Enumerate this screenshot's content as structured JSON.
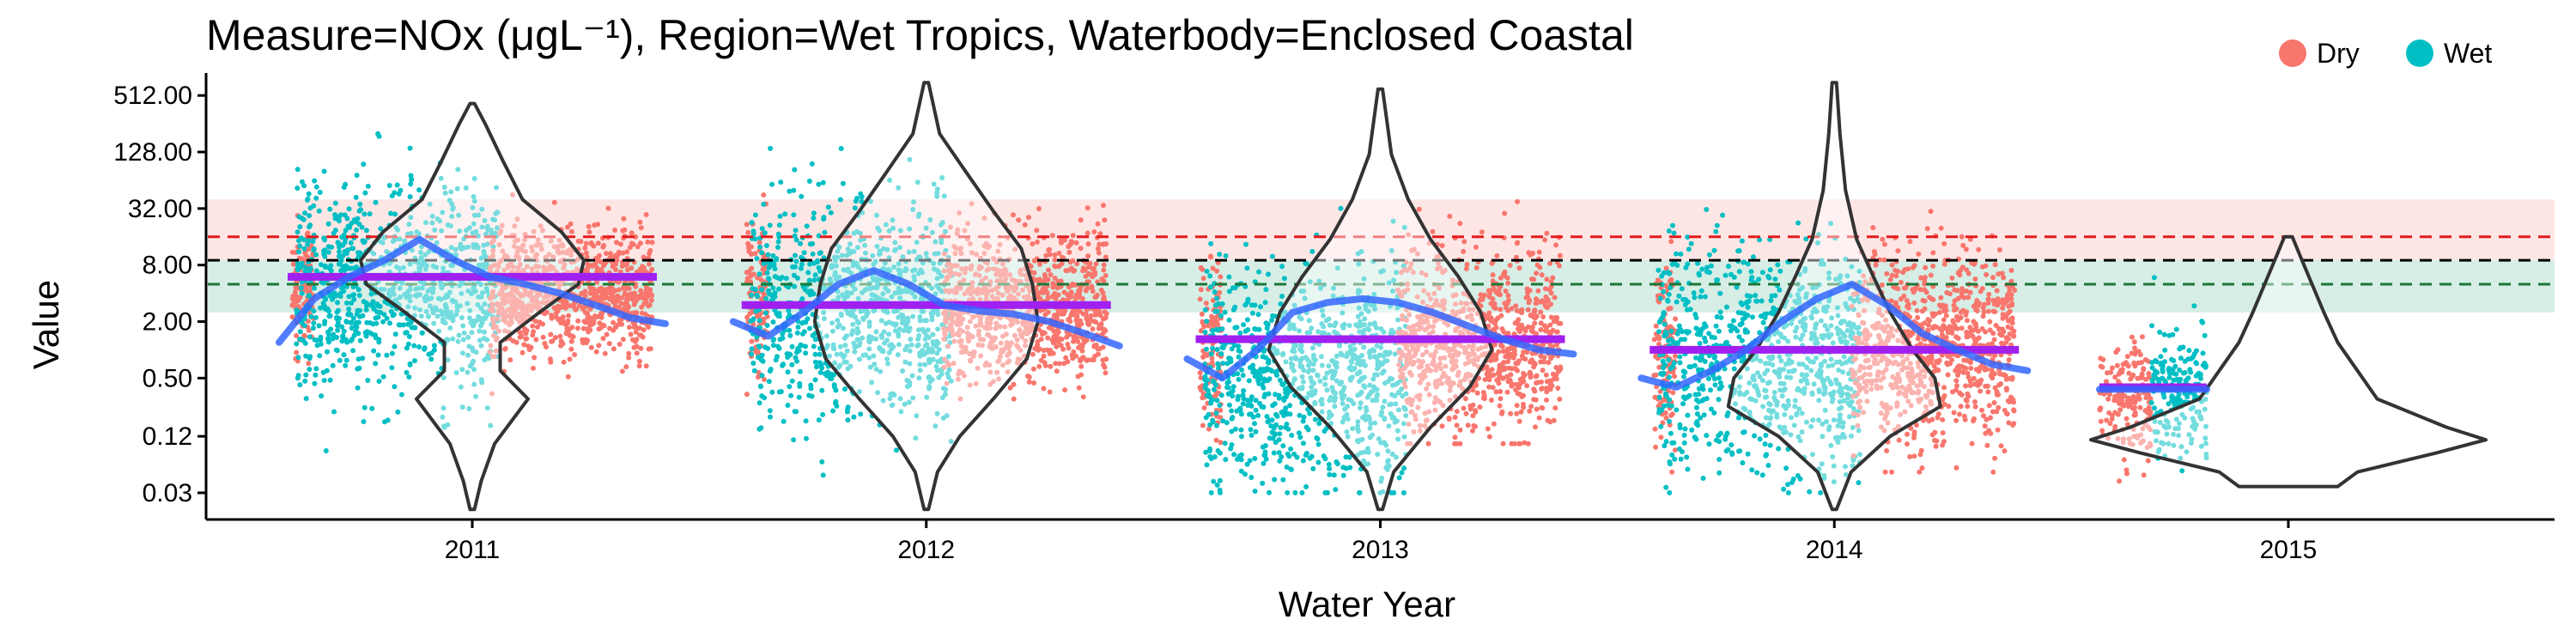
{
  "chart_data": {
    "type": "scatter",
    "title": "Measure=NOx (μgL⁻¹), Region=Wet Tropics, Waterbody=Enclosed Coastal",
    "xlabel": "Water Year",
    "ylabel": "Value",
    "y_scale": "log2",
    "ylim": [
      0.0156,
      800
    ],
    "y_ticks": [
      0.03,
      0.12,
      0.5,
      2.0,
      8.0,
      32.0,
      128.0,
      512.0
    ],
    "y_tick_labels": [
      "0.03",
      "0.12",
      "0.50",
      "2.00",
      "8.00",
      "32.00",
      "128.00",
      "512.00"
    ],
    "categories": [
      "2011",
      "2012",
      "2013",
      "2014",
      "2015"
    ],
    "grid": false,
    "legend": {
      "position": "top-right",
      "entries": [
        {
          "label": "Dry",
          "color": "#F8766D"
        },
        {
          "label": "Wet",
          "color": "#00BFC4"
        }
      ]
    },
    "reference_lines": [
      {
        "color": "#E41A1C",
        "value": 16,
        "style": "dashed"
      },
      {
        "color": "#000000",
        "value": 9,
        "style": "dashed"
      },
      {
        "color": "#1B7837",
        "value": 5,
        "style": "dashed"
      }
    ],
    "reference_bands": [
      {
        "color": "#F8766D",
        "range": [
          9,
          40
        ]
      },
      {
        "color": "#1B9E77",
        "range": [
          2.5,
          9
        ]
      }
    ],
    "seasons": [
      {
        "year": "2011",
        "wet": {
          "low": 0.03,
          "high": 400,
          "center": 5
        },
        "dry": {
          "low": 0.3,
          "high": 60,
          "center": 4
        },
        "median": 6.0,
        "violin_min": 0.02,
        "violin_max": 420,
        "trend": [
          1.2,
          3.5,
          6,
          9,
          15,
          9,
          6,
          5,
          4,
          3,
          2.2,
          1.9
        ],
        "density": [
          [
            0.02,
            0.02
          ],
          [
            0.04,
            0.08
          ],
          [
            0.1,
            0.2
          ],
          [
            0.3,
            0.5
          ],
          [
            0.6,
            0.25
          ],
          [
            1.2,
            0.25
          ],
          [
            2.5,
            0.6
          ],
          [
            5,
            0.95
          ],
          [
            9,
            1.0
          ],
          [
            18,
            0.8
          ],
          [
            40,
            0.45
          ],
          [
            100,
            0.28
          ],
          [
            250,
            0.12
          ],
          [
            420,
            0.02
          ]
        ]
      },
      {
        "year": "2012",
        "wet": {
          "low": 0.03,
          "high": 500,
          "center": 3
        },
        "dry": {
          "low": 0.3,
          "high": 200,
          "center": 3
        },
        "median": 3.0,
        "violin_min": 0.02,
        "violin_max": 700,
        "trend": [
          2.0,
          1.4,
          2.5,
          5,
          7,
          5,
          3,
          2.6,
          2.4,
          2.0,
          1.5,
          1.1
        ],
        "density": [
          [
            0.02,
            0.02
          ],
          [
            0.05,
            0.1
          ],
          [
            0.12,
            0.3
          ],
          [
            0.3,
            0.6
          ],
          [
            0.8,
            0.9
          ],
          [
            2,
            1.0
          ],
          [
            5,
            0.95
          ],
          [
            12,
            0.85
          ],
          [
            30,
            0.6
          ],
          [
            80,
            0.35
          ],
          [
            200,
            0.12
          ],
          [
            700,
            0.02
          ]
        ]
      },
      {
        "year": "2013",
        "wet": {
          "low": 0.03,
          "high": 500,
          "center": 0.5
        },
        "dry": {
          "low": 0.1,
          "high": 200,
          "center": 1.2
        },
        "median": 1.3,
        "violin_min": 0.02,
        "violin_max": 600,
        "trend": [
          0.8,
          0.5,
          1.0,
          2.5,
          3.2,
          3.5,
          3.2,
          2.5,
          1.8,
          1.3,
          1.0,
          0.9
        ],
        "density": [
          [
            0.02,
            0.02
          ],
          [
            0.05,
            0.12
          ],
          [
            0.15,
            0.45
          ],
          [
            0.4,
            0.8
          ],
          [
            1,
            1.0
          ],
          [
            2.5,
            0.9
          ],
          [
            6,
            0.7
          ],
          [
            15,
            0.45
          ],
          [
            40,
            0.25
          ],
          [
            120,
            0.1
          ],
          [
            600,
            0.02
          ]
        ]
      },
      {
        "year": "2014",
        "wet": {
          "low": 0.03,
          "high": 500,
          "center": 0.8
        },
        "dry": {
          "low": 0.05,
          "high": 200,
          "center": 1.0
        },
        "median": 1.0,
        "violin_min": 0.02,
        "violin_max": 700,
        "trend": [
          0.5,
          0.4,
          0.6,
          1.0,
          2.0,
          3.5,
          5,
          3.0,
          1.5,
          1.0,
          0.7,
          0.6
        ],
        "density": [
          [
            0.02,
            0.02
          ],
          [
            0.05,
            0.15
          ],
          [
            0.12,
            0.5
          ],
          [
            0.25,
            0.95
          ],
          [
            0.5,
            0.9
          ],
          [
            1,
            0.7
          ],
          [
            2.5,
            0.5
          ],
          [
            6,
            0.35
          ],
          [
            15,
            0.2
          ],
          [
            50,
            0.1
          ],
          [
            200,
            0.05
          ],
          [
            700,
            0.02
          ]
        ]
      },
      {
        "year": "2015",
        "wet": {
          "low": 0.04,
          "high": 12,
          "center": 0.4
        },
        "dry": {
          "low": 0.04,
          "high": 8,
          "center": 0.3
        },
        "median": 0.4,
        "violin_min": 0.035,
        "violin_max": 16,
        "trend": [
          0.38,
          0.38,
          0.38
        ],
        "density": [
          [
            0.035,
            0.25
          ],
          [
            0.05,
            0.35
          ],
          [
            0.08,
            0.75
          ],
          [
            0.11,
            1.0
          ],
          [
            0.15,
            0.8
          ],
          [
            0.3,
            0.45
          ],
          [
            0.6,
            0.35
          ],
          [
            1.2,
            0.25
          ],
          [
            2.5,
            0.18
          ],
          [
            5,
            0.12
          ],
          [
            10,
            0.06
          ],
          [
            16,
            0.02
          ]
        ]
      }
    ]
  }
}
